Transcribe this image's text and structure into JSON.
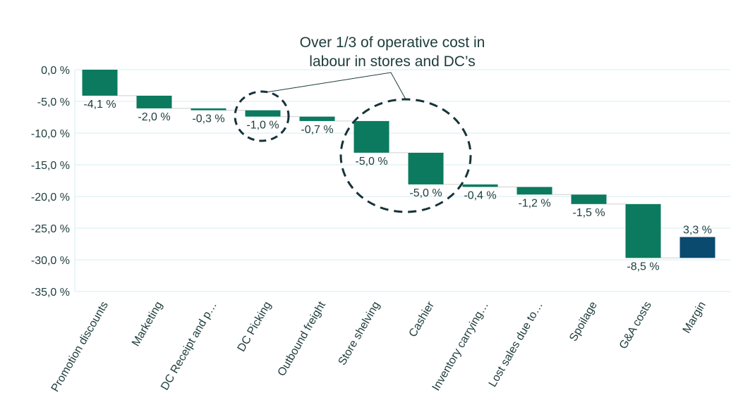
{
  "chart_data": {
    "type": "waterfall",
    "title": "",
    "xlabel": "",
    "ylabel": "",
    "ylim": [
      -35,
      0
    ],
    "y_ticks": [
      0,
      -5,
      -10,
      -15,
      -20,
      -25,
      -30,
      -35
    ],
    "y_tick_labels": [
      "0,0 %",
      "-5,0 %",
      "-10,0 %",
      "-15,0 %",
      "-20,0 %",
      "-25,0 %",
      "-30,0 %",
      "-35,0 %"
    ],
    "grid": true,
    "categories": [
      "Promotion discounts",
      "Marketing",
      "DC Receipt and p…",
      "DC Picking",
      "Outbound freight",
      "Store shelving",
      "Cashier",
      "Inventory carrying…",
      "Lost sales due to…",
      "Spoilage",
      "G&A costs",
      "Margin"
    ],
    "values": [
      -4.1,
      -2.0,
      -0.3,
      -1.0,
      -0.7,
      -5.0,
      -5.0,
      -0.4,
      -1.2,
      -1.5,
      -8.5,
      3.3
    ],
    "data_labels": [
      "-4,1 %",
      "-2,0 %",
      "-0,3 %",
      "-1,0 %",
      "-0,7 %",
      "-5,0 %",
      "-5,0 %",
      "-0,4 %",
      "-1,2 %",
      "-1,5 %",
      "-8,5 %",
      "3,3 %"
    ],
    "colors": {
      "cost": "#0b7a5e",
      "margin": "#0a4a6e",
      "text": "#1d3b3b",
      "grid": "#d6eef2"
    },
    "annotation": {
      "lines": [
        "Over 1/3 of operative cost in",
        "labour in stores and DC’s"
      ],
      "highlighted": [
        "DC Picking",
        "Store shelving",
        "Cashier"
      ]
    }
  }
}
